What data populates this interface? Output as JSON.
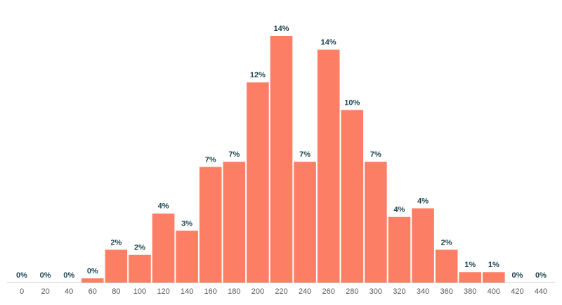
{
  "chart_data": {
    "type": "bar",
    "categories": [
      0,
      20,
      40,
      60,
      80,
      100,
      120,
      140,
      160,
      180,
      200,
      220,
      240,
      260,
      280,
      300,
      320,
      340,
      360,
      380,
      400,
      420,
      440
    ],
    "values": [
      0,
      0,
      0,
      0.24,
      1.9,
      1.6,
      4.0,
      3.0,
      6.7,
      7.0,
      11.6,
      14.3,
      7.0,
      13.5,
      10.0,
      7.0,
      3.8,
      4.3,
      1.9,
      0.6,
      0.6,
      0,
      0
    ],
    "value_labels": [
      "0%",
      "0%",
      "0%",
      "0%",
      "2%",
      "2%",
      "4%",
      "3%",
      "7%",
      "7%",
      "12%",
      "14%",
      "7%",
      "14%",
      "10%",
      "7%",
      "4%",
      "4%",
      "2%",
      "1%",
      "1%",
      "0%",
      "0%"
    ],
    "color": "#fc7e64"
  }
}
